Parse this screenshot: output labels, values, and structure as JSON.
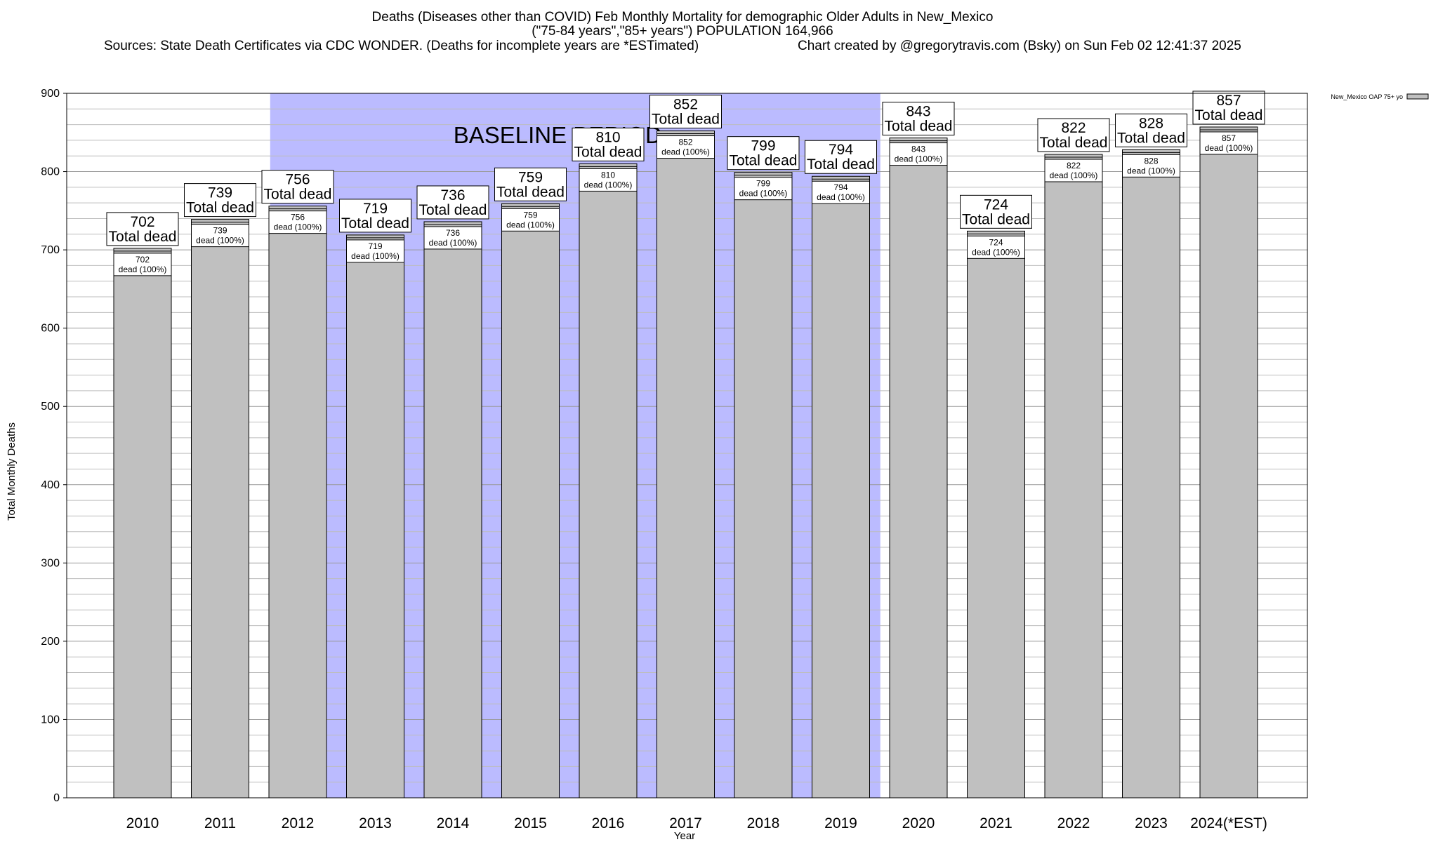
{
  "chart_data": {
    "type": "bar",
    "title": "Deaths (Diseases other than COVID) Feb Monthly Mortality for demographic Older Adults in New_Mexico",
    "subtitle": "(\"75-84 years\",\"85+ years\") POPULATION 164,966",
    "sources": "Sources: State Death Certificates via CDC WONDER. (Deaths for incomplete years are *ESTimated)",
    "credit": "Chart created by @gregorytravis.com (Bsky) on Sun Feb 02 12:41:37 2025",
    "xlabel": "Year",
    "ylabel": "Total Monthly Deaths",
    "ylim": [
      0,
      900
    ],
    "yticks": [
      0,
      100,
      200,
      300,
      400,
      500,
      600,
      700,
      800,
      900
    ],
    "categories": [
      "2010",
      "2011",
      "2012",
      "2013",
      "2014",
      "2015",
      "2016",
      "2017",
      "2018",
      "2019",
      "2020",
      "2021",
      "2022",
      "2023",
      "2024(*EST)"
    ],
    "series": [
      {
        "name": "New_Mexico OAP 75+ yo",
        "color": "#c0c0c0",
        "values": [
          702,
          739,
          756,
          719,
          736,
          759,
          810,
          852,
          799,
          794,
          843,
          724,
          822,
          828,
          857
        ]
      }
    ],
    "total_label": "Total dead",
    "inner_label": "dead (100%)",
    "baseline": {
      "label": "BASELINE PERIOD",
      "start": "2012",
      "end": "2019",
      "color": "#bbbbff"
    },
    "grid": true,
    "legend_position": "top-right"
  }
}
